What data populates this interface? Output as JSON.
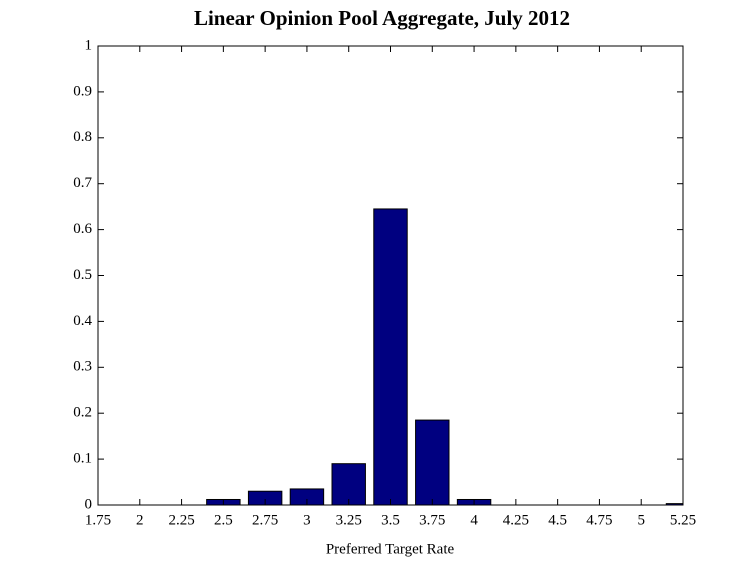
{
  "chart_data": {
    "type": "bar",
    "title": "Linear Opinion Pool Aggregate, July 2012",
    "xlabel": "Preferred Target Rate",
    "x": [
      1.75,
      2,
      2.25,
      2.5,
      2.75,
      3,
      3.25,
      3.5,
      3.75,
      4,
      4.25,
      4.5,
      4.75,
      5,
      5.25
    ],
    "values": [
      0,
      0,
      0,
      0.012,
      0.03,
      0.035,
      0.09,
      0.645,
      0.185,
      0.012,
      0,
      0,
      0,
      0,
      0.003
    ],
    "color": "#000080",
    "xlim": [
      1.75,
      5.25
    ],
    "xticks": [
      1.75,
      2,
      2.25,
      2.5,
      2.75,
      3,
      3.25,
      3.5,
      3.75,
      4,
      4.25,
      4.5,
      4.75,
      5,
      5.25
    ],
    "ylim": [
      0,
      1
    ],
    "yticks": [
      0,
      0.1,
      0.2,
      0.3,
      0.4,
      0.5,
      0.6,
      0.7,
      0.8,
      0.9,
      1
    ],
    "grid": false
  }
}
